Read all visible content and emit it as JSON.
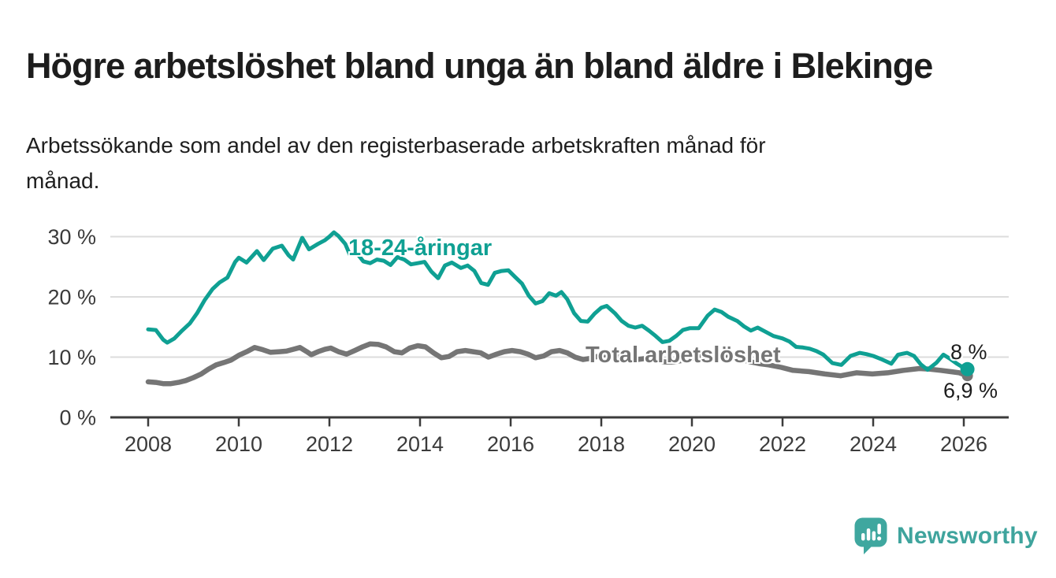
{
  "page": {
    "title": "Högre arbetslöshet bland unga än bland äldre i Blekinge",
    "subtitle": "Arbetssökande som andel av den registerbaserade arbetskraften månad för månad."
  },
  "chart_data": {
    "type": "line",
    "title": "Högre arbetslöshet bland unga än bland äldre i Blekinge",
    "xlabel": "",
    "ylabel": "",
    "x_axis": {
      "ticks": [
        2008,
        2010,
        2012,
        2014,
        2016,
        2018,
        2020,
        2022,
        2024,
        2026
      ],
      "tick_labels": [
        "2008",
        "2010",
        "2012",
        "2014",
        "2016",
        "2018",
        "2020",
        "2022",
        "2024",
        "2026"
      ],
      "range": [
        2008.0,
        2026.08
      ]
    },
    "y_axis": {
      "ticks": [
        0,
        10,
        20,
        30
      ],
      "tick_labels": [
        "0 %",
        "10 %",
        "20 %",
        "30 %"
      ],
      "unit": "%",
      "ylim": [
        0,
        32
      ]
    },
    "grid_color": "#dcdcdc",
    "axis_color": "#3b3b3b",
    "legend_position": "inline-labels",
    "series": [
      {
        "name": "Total arbetslöshet",
        "color": "#757575",
        "end_label": "6,9 %",
        "end_value": 6.9,
        "points": [
          [
            2008.0,
            5.9
          ],
          [
            2008.17,
            5.8
          ],
          [
            2008.33,
            5.6
          ],
          [
            2008.5,
            5.6
          ],
          [
            2008.67,
            5.8
          ],
          [
            2008.83,
            6.1
          ],
          [
            2009.0,
            6.6
          ],
          [
            2009.17,
            7.2
          ],
          [
            2009.33,
            8.0
          ],
          [
            2009.5,
            8.7
          ],
          [
            2009.67,
            9.1
          ],
          [
            2009.83,
            9.5
          ],
          [
            2010.0,
            10.3
          ],
          [
            2010.2,
            11.0
          ],
          [
            2010.35,
            11.6
          ],
          [
            2010.5,
            11.3
          ],
          [
            2010.7,
            10.8
          ],
          [
            2010.9,
            10.9
          ],
          [
            2011.05,
            11.0
          ],
          [
            2011.2,
            11.3
          ],
          [
            2011.35,
            11.6
          ],
          [
            2011.5,
            10.9
          ],
          [
            2011.6,
            10.4
          ],
          [
            2011.75,
            10.9
          ],
          [
            2011.9,
            11.3
          ],
          [
            2012.03,
            11.5
          ],
          [
            2012.2,
            10.9
          ],
          [
            2012.38,
            10.5
          ],
          [
            2012.56,
            11.1
          ],
          [
            2012.73,
            11.7
          ],
          [
            2012.9,
            12.2
          ],
          [
            2013.08,
            12.1
          ],
          [
            2013.25,
            11.7
          ],
          [
            2013.43,
            10.9
          ],
          [
            2013.6,
            10.7
          ],
          [
            2013.77,
            11.5
          ],
          [
            2013.95,
            11.9
          ],
          [
            2014.12,
            11.7
          ],
          [
            2014.3,
            10.7
          ],
          [
            2014.47,
            9.9
          ],
          [
            2014.64,
            10.1
          ],
          [
            2014.82,
            10.9
          ],
          [
            2015.0,
            11.1
          ],
          [
            2015.17,
            10.9
          ],
          [
            2015.34,
            10.7
          ],
          [
            2015.51,
            10.0
          ],
          [
            2015.69,
            10.5
          ],
          [
            2015.86,
            10.9
          ],
          [
            2016.03,
            11.1
          ],
          [
            2016.21,
            10.9
          ],
          [
            2016.38,
            10.5
          ],
          [
            2016.55,
            9.9
          ],
          [
            2016.73,
            10.2
          ],
          [
            2016.9,
            10.9
          ],
          [
            2017.08,
            11.1
          ],
          [
            2017.25,
            10.7
          ],
          [
            2017.42,
            10.0
          ],
          [
            2017.6,
            9.6
          ],
          [
            2017.77,
            9.8
          ],
          [
            2017.95,
            10.2
          ],
          [
            2018.1,
            10.4
          ],
          [
            2018.3,
            10.1
          ],
          [
            2018.5,
            9.8
          ],
          [
            2018.7,
            9.5
          ],
          [
            2019.0,
            9.8
          ],
          [
            2019.2,
            9.5
          ],
          [
            2019.4,
            9.2
          ],
          [
            2019.6,
            9.2
          ],
          [
            2019.9,
            9.6
          ],
          [
            2020.1,
            9.9
          ],
          [
            2020.3,
            10.2
          ],
          [
            2020.5,
            10.4
          ],
          [
            2020.7,
            10.3
          ],
          [
            2020.9,
            10.0
          ],
          [
            2021.1,
            9.6
          ],
          [
            2021.3,
            9.2
          ],
          [
            2021.5,
            8.9
          ],
          [
            2021.7,
            8.7
          ],
          [
            2021.97,
            8.3
          ],
          [
            2022.23,
            7.8
          ],
          [
            2022.58,
            7.6
          ],
          [
            2022.93,
            7.2
          ],
          [
            2023.28,
            6.9
          ],
          [
            2023.63,
            7.4
          ],
          [
            2023.98,
            7.2
          ],
          [
            2024.32,
            7.4
          ],
          [
            2024.67,
            7.8
          ],
          [
            2025.02,
            8.1
          ],
          [
            2025.25,
            8.0
          ],
          [
            2025.49,
            7.8
          ],
          [
            2025.7,
            7.6
          ],
          [
            2025.9,
            7.4
          ],
          [
            2026.08,
            6.9
          ]
        ]
      },
      {
        "name": "18-24-åringar",
        "color": "#0fa093",
        "end_label": "8 %",
        "end_value": 8.0,
        "points": [
          [
            2008.0,
            14.6
          ],
          [
            2008.17,
            14.5
          ],
          [
            2008.33,
            12.9
          ],
          [
            2008.42,
            12.4
          ],
          [
            2008.58,
            13.1
          ],
          [
            2008.75,
            14.4
          ],
          [
            2008.92,
            15.6
          ],
          [
            2009.08,
            17.3
          ],
          [
            2009.25,
            19.5
          ],
          [
            2009.42,
            21.3
          ],
          [
            2009.58,
            22.4
          ],
          [
            2009.75,
            23.2
          ],
          [
            2009.92,
            25.8
          ],
          [
            2010.0,
            26.5
          ],
          [
            2010.17,
            25.7
          ],
          [
            2010.4,
            27.6
          ],
          [
            2010.55,
            26.1
          ],
          [
            2010.75,
            28.0
          ],
          [
            2010.95,
            28.5
          ],
          [
            2011.1,
            26.9
          ],
          [
            2011.2,
            26.2
          ],
          [
            2011.4,
            29.8
          ],
          [
            2011.55,
            27.9
          ],
          [
            2011.75,
            28.8
          ],
          [
            2011.9,
            29.4
          ],
          [
            2012.0,
            30.0
          ],
          [
            2012.1,
            30.7
          ],
          [
            2012.2,
            30.1
          ],
          [
            2012.35,
            28.8
          ],
          [
            2012.45,
            27.0
          ],
          [
            2012.6,
            27.3
          ],
          [
            2012.75,
            25.9
          ],
          [
            2012.9,
            25.6
          ],
          [
            2013.05,
            26.2
          ],
          [
            2013.2,
            26.0
          ],
          [
            2013.35,
            25.3
          ],
          [
            2013.5,
            26.6
          ],
          [
            2013.65,
            26.2
          ],
          [
            2013.8,
            25.4
          ],
          [
            2013.95,
            25.6
          ],
          [
            2014.1,
            25.8
          ],
          [
            2014.25,
            24.2
          ],
          [
            2014.4,
            23.1
          ],
          [
            2014.55,
            25.2
          ],
          [
            2014.7,
            25.7
          ],
          [
            2014.9,
            24.8
          ],
          [
            2015.05,
            25.2
          ],
          [
            2015.2,
            24.3
          ],
          [
            2015.35,
            22.3
          ],
          [
            2015.5,
            22.0
          ],
          [
            2015.65,
            24.0
          ],
          [
            2015.8,
            24.3
          ],
          [
            2015.95,
            24.4
          ],
          [
            2016.1,
            23.3
          ],
          [
            2016.25,
            22.2
          ],
          [
            2016.4,
            20.2
          ],
          [
            2016.55,
            18.9
          ],
          [
            2016.7,
            19.3
          ],
          [
            2016.85,
            20.6
          ],
          [
            2017.0,
            20.2
          ],
          [
            2017.12,
            20.8
          ],
          [
            2017.25,
            19.6
          ],
          [
            2017.4,
            17.3
          ],
          [
            2017.55,
            16.0
          ],
          [
            2017.7,
            15.9
          ],
          [
            2017.85,
            17.2
          ],
          [
            2018.0,
            18.2
          ],
          [
            2018.12,
            18.5
          ],
          [
            2018.3,
            17.3
          ],
          [
            2018.45,
            16.0
          ],
          [
            2018.6,
            15.2
          ],
          [
            2018.75,
            14.9
          ],
          [
            2018.9,
            15.2
          ],
          [
            2019.05,
            14.4
          ],
          [
            2019.2,
            13.5
          ],
          [
            2019.35,
            12.5
          ],
          [
            2019.5,
            12.7
          ],
          [
            2019.65,
            13.5
          ],
          [
            2019.8,
            14.5
          ],
          [
            2019.95,
            14.8
          ],
          [
            2020.15,
            14.8
          ],
          [
            2020.35,
            16.9
          ],
          [
            2020.5,
            17.9
          ],
          [
            2020.65,
            17.5
          ],
          [
            2020.8,
            16.7
          ],
          [
            2021.0,
            16.0
          ],
          [
            2021.15,
            15.1
          ],
          [
            2021.3,
            14.4
          ],
          [
            2021.45,
            14.9
          ],
          [
            2021.6,
            14.3
          ],
          [
            2021.8,
            13.5
          ],
          [
            2022.0,
            13.1
          ],
          [
            2022.15,
            12.6
          ],
          [
            2022.3,
            11.7
          ],
          [
            2022.45,
            11.6
          ],
          [
            2022.6,
            11.4
          ],
          [
            2022.75,
            11.0
          ],
          [
            2022.9,
            10.4
          ],
          [
            2023.1,
            9.0
          ],
          [
            2023.3,
            8.7
          ],
          [
            2023.5,
            10.2
          ],
          [
            2023.7,
            10.7
          ],
          [
            2023.85,
            10.5
          ],
          [
            2024.0,
            10.2
          ],
          [
            2024.2,
            9.6
          ],
          [
            2024.4,
            8.9
          ],
          [
            2024.55,
            10.4
          ],
          [
            2024.75,
            10.7
          ],
          [
            2024.9,
            10.2
          ],
          [
            2025.05,
            8.8
          ],
          [
            2025.2,
            7.9
          ],
          [
            2025.4,
            9.1
          ],
          [
            2025.55,
            10.4
          ],
          [
            2025.7,
            9.7
          ],
          [
            2025.85,
            8.9
          ],
          [
            2026.0,
            8.2
          ],
          [
            2026.08,
            8.0
          ]
        ]
      }
    ]
  },
  "logo": {
    "text": "Newsworthy",
    "color": "#3fa49d",
    "icon_color": "#3fa79f"
  }
}
